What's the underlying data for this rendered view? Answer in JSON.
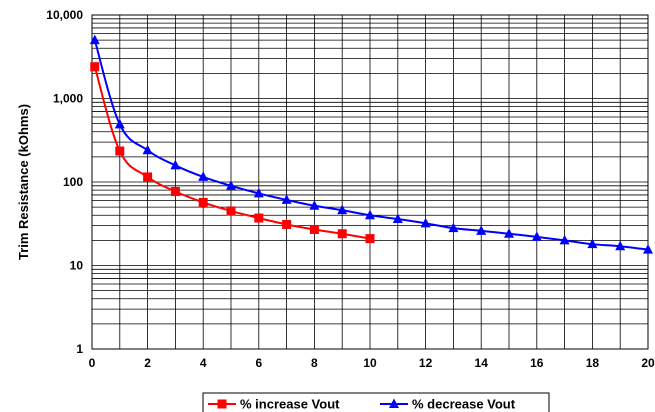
{
  "chart_data": {
    "type": "line",
    "title": "",
    "xlabel": "",
    "ylabel": "Trim Resistance (kOhms)",
    "xlim": [
      0,
      20
    ],
    "ylim": [
      1,
      10000
    ],
    "y_scale": "log",
    "grid": true,
    "legend_position": "bottom",
    "x_ticks": [
      "0",
      "2",
      "4",
      "6",
      "8",
      "10",
      "12",
      "14",
      "16",
      "18",
      "20"
    ],
    "y_ticks": [
      "1",
      "10",
      "100",
      "1,000",
      "10,000"
    ],
    "series": [
      {
        "name": "% increase Vout",
        "color": "#ff0000",
        "marker": "square",
        "x": [
          0.1,
          1,
          2,
          3,
          4,
          5,
          6,
          7,
          8,
          9,
          10
        ],
        "y": [
          2400,
          235,
          115,
          77,
          57,
          45,
          37,
          31,
          27,
          24,
          21
        ]
      },
      {
        "name": "% decrease Vout",
        "color": "#0000ff",
        "marker": "triangle",
        "x": [
          0.1,
          1,
          2,
          3,
          4,
          5,
          6,
          7,
          8,
          9,
          10,
          11,
          12,
          13,
          14,
          15,
          16,
          17,
          18,
          19,
          20
        ],
        "y": [
          5000,
          490,
          240,
          158,
          115,
          90,
          73,
          61,
          52,
          46,
          40,
          36,
          32,
          28,
          26,
          24,
          22,
          20,
          18,
          17,
          15.5
        ]
      }
    ]
  }
}
